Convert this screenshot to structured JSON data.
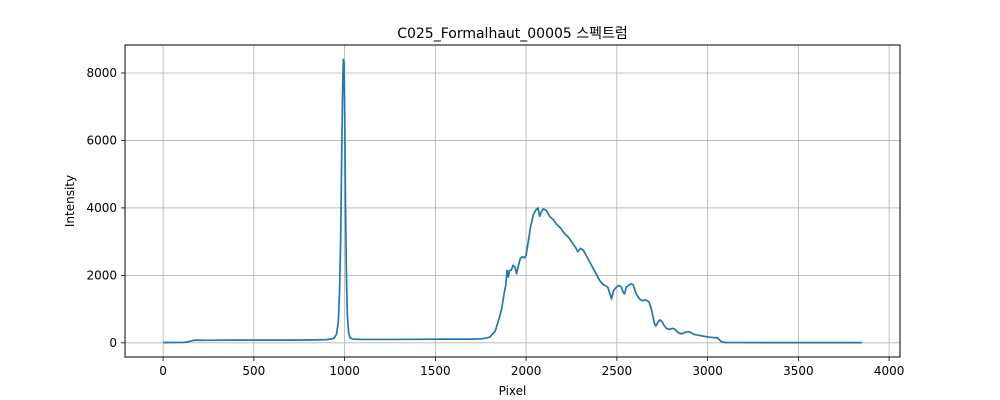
{
  "chart_data": {
    "type": "line",
    "title": "C025_Formalhaut_00005 스펙트럼",
    "xlabel": "Pixel",
    "ylabel": "Intensity",
    "xlim": [
      -210,
      4060
    ],
    "ylim": [
      -420,
      8830
    ],
    "xticks": [
      0,
      500,
      1000,
      1500,
      2000,
      2500,
      3000,
      3500,
      4000
    ],
    "yticks": [
      0,
      2000,
      4000,
      6000,
      8000
    ],
    "xtick_labels": [
      "0",
      "500",
      "1000",
      "1500",
      "2000",
      "2500",
      "3000",
      "3500",
      "4000"
    ],
    "ytick_labels": [
      "0",
      "2000",
      "4000",
      "6000",
      "8000"
    ],
    "grid": true,
    "line_color": "#1f77b4",
    "series": [
      {
        "points": [
          [
            0,
            10
          ],
          [
            60,
            10
          ],
          [
            110,
            12
          ],
          [
            130,
            25
          ],
          [
            150,
            50
          ],
          [
            165,
            70
          ],
          [
            180,
            80
          ],
          [
            250,
            75
          ],
          [
            350,
            80
          ],
          [
            500,
            80
          ],
          [
            650,
            80
          ],
          [
            800,
            85
          ],
          [
            900,
            95
          ],
          [
            940,
            130
          ],
          [
            955,
            250
          ],
          [
            965,
            600
          ],
          [
            972,
            1500
          ],
          [
            978,
            3000
          ],
          [
            984,
            5500
          ],
          [
            989,
            7500
          ],
          [
            993,
            8400
          ],
          [
            997,
            8300
          ],
          [
            1001,
            6500
          ],
          [
            1005,
            4000
          ],
          [
            1010,
            2000
          ],
          [
            1015,
            800
          ],
          [
            1022,
            300
          ],
          [
            1030,
            150
          ],
          [
            1045,
            110
          ],
          [
            1100,
            100
          ],
          [
            1250,
            100
          ],
          [
            1400,
            105
          ],
          [
            1550,
            110
          ],
          [
            1700,
            110
          ],
          [
            1760,
            120
          ],
          [
            1800,
            170
          ],
          [
            1830,
            350
          ],
          [
            1850,
            700
          ],
          [
            1865,
            1000
          ],
          [
            1880,
            1500
          ],
          [
            1888,
            1700
          ],
          [
            1895,
            2150
          ],
          [
            1902,
            1950
          ],
          [
            1908,
            2150
          ],
          [
            1918,
            2150
          ],
          [
            1928,
            2300
          ],
          [
            1938,
            2250
          ],
          [
            1948,
            2050
          ],
          [
            1958,
            2300
          ],
          [
            1968,
            2500
          ],
          [
            1980,
            2550
          ],
          [
            1992,
            2520
          ],
          [
            2000,
            2600
          ],
          [
            2012,
            3000
          ],
          [
            2025,
            3450
          ],
          [
            2040,
            3800
          ],
          [
            2055,
            3950
          ],
          [
            2065,
            4000
          ],
          [
            2075,
            3750
          ],
          [
            2085,
            3900
          ],
          [
            2095,
            3970
          ],
          [
            2110,
            3930
          ],
          [
            2130,
            3750
          ],
          [
            2150,
            3650
          ],
          [
            2170,
            3500
          ],
          [
            2190,
            3400
          ],
          [
            2210,
            3250
          ],
          [
            2230,
            3150
          ],
          [
            2250,
            3000
          ],
          [
            2270,
            2850
          ],
          [
            2285,
            2700
          ],
          [
            2300,
            2800
          ],
          [
            2315,
            2750
          ],
          [
            2330,
            2600
          ],
          [
            2345,
            2450
          ],
          [
            2360,
            2300
          ],
          [
            2375,
            2150
          ],
          [
            2390,
            2000
          ],
          [
            2405,
            1850
          ],
          [
            2420,
            1750
          ],
          [
            2435,
            1700
          ],
          [
            2450,
            1650
          ],
          [
            2462,
            1450
          ],
          [
            2470,
            1300
          ],
          [
            2482,
            1550
          ],
          [
            2497,
            1650
          ],
          [
            2512,
            1700
          ],
          [
            2525,
            1650
          ],
          [
            2535,
            1500
          ],
          [
            2542,
            1450
          ],
          [
            2552,
            1650
          ],
          [
            2565,
            1700
          ],
          [
            2578,
            1750
          ],
          [
            2590,
            1720
          ],
          [
            2600,
            1550
          ],
          [
            2612,
            1400
          ],
          [
            2625,
            1300
          ],
          [
            2640,
            1250
          ],
          [
            2655,
            1270
          ],
          [
            2668,
            1250
          ],
          [
            2678,
            1200
          ],
          [
            2690,
            1000
          ],
          [
            2700,
            750
          ],
          [
            2708,
            550
          ],
          [
            2715,
            500
          ],
          [
            2725,
            600
          ],
          [
            2738,
            680
          ],
          [
            2750,
            620
          ],
          [
            2762,
            500
          ],
          [
            2775,
            420
          ],
          [
            2790,
            400
          ],
          [
            2805,
            430
          ],
          [
            2820,
            400
          ],
          [
            2835,
            320
          ],
          [
            2850,
            270
          ],
          [
            2865,
            280
          ],
          [
            2880,
            320
          ],
          [
            2895,
            330
          ],
          [
            2910,
            300
          ],
          [
            2925,
            250
          ],
          [
            2945,
            230
          ],
          [
            2965,
            210
          ],
          [
            2985,
            190
          ],
          [
            3005,
            170
          ],
          [
            3025,
            160
          ],
          [
            3040,
            150
          ],
          [
            3055,
            150
          ],
          [
            3065,
            90
          ],
          [
            3075,
            40
          ],
          [
            3085,
            20
          ],
          [
            3100,
            10
          ],
          [
            3200,
            8
          ],
          [
            3400,
            6
          ],
          [
            3600,
            5
          ],
          [
            3850,
            5
          ]
        ]
      }
    ]
  }
}
